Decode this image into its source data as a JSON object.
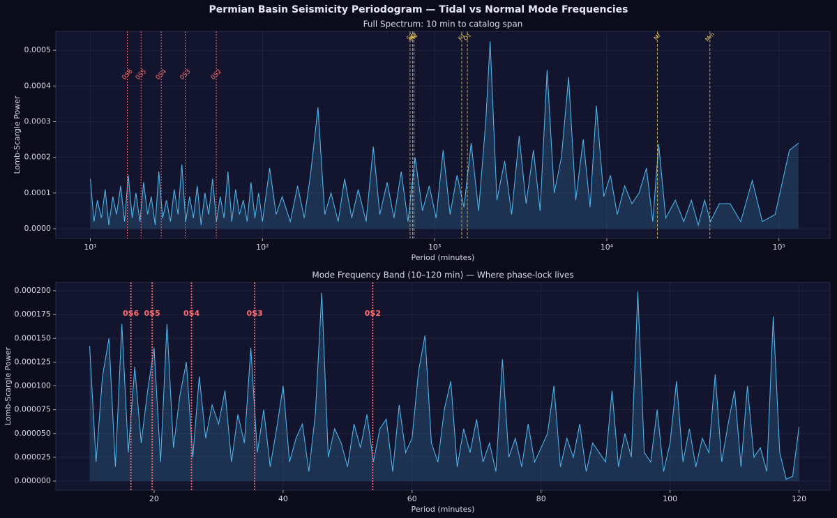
{
  "title": "Permian Basin Seismicity Periodogram — Tidal vs Normal Mode Frequencies",
  "chart_data": [
    {
      "type": "line",
      "title": "Full Spectrum: 10 min to catalog span",
      "xlabel": "Period (minutes)",
      "ylabel": "Lomb-Scargle Power",
      "x_scale": "log",
      "grid": true,
      "xlim": [
        6.3,
        198000
      ],
      "ylim": [
        -2.73e-05,
        0.000553
      ],
      "xticks": [
        {
          "value": 10,
          "label": "10¹"
        },
        {
          "value": 100,
          "label": "10²"
        },
        {
          "value": 1000,
          "label": "10³"
        },
        {
          "value": 10000,
          "label": "10⁴"
        },
        {
          "value": 100000,
          "label": "10⁵"
        }
      ],
      "yticks": [
        {
          "value": 0,
          "label": "0.0000"
        },
        {
          "value": 0.0001,
          "label": "0.0001"
        },
        {
          "value": 0.0002,
          "label": "0.0002"
        },
        {
          "value": 0.0003,
          "label": "0.0003"
        },
        {
          "value": 0.0004,
          "label": "0.0004"
        },
        {
          "value": 0.0005,
          "label": "0.0005"
        }
      ],
      "x": [
        10,
        10.5,
        11,
        11.6,
        12.2,
        12.8,
        13.5,
        14.2,
        15,
        15.8,
        16.6,
        17.5,
        18.4,
        19.4,
        20.4,
        21.5,
        22.6,
        23.8,
        25,
        26.3,
        27.7,
        29.2,
        30.7,
        32.3,
        34,
        35.8,
        37.7,
        39.7,
        41.8,
        44,
        46.3,
        48.7,
        51.3,
        54,
        56.8,
        59.8,
        63,
        66.3,
        69.8,
        73.5,
        77.4,
        81.5,
        85.8,
        90.3,
        95,
        100,
        110,
        120,
        130,
        145,
        160,
        175,
        190,
        210,
        230,
        250,
        275,
        300,
        330,
        360,
        400,
        440,
        480,
        530,
        580,
        640,
        700,
        770,
        850,
        930,
        1020,
        1120,
        1230,
        1350,
        1480,
        1630,
        1800,
        1980,
        2100,
        2300,
        2550,
        2800,
        3100,
        3400,
        3750,
        4100,
        4500,
        4950,
        5450,
        6000,
        6600,
        7300,
        8000,
        8700,
        9600,
        10500,
        11500,
        12700,
        14000,
        15400,
        17000,
        18500,
        20000,
        22000,
        25000,
        28000,
        31000,
        34000,
        37000,
        40000,
        45000,
        52000,
        60000,
        70000,
        80000,
        95000,
        115000,
        130000
      ],
      "series": [
        {
          "color": "#4fb3e8",
          "values": [
            0.00014,
            2e-05,
            8e-05,
            3e-05,
            0.00011,
            1e-05,
            9e-05,
            4e-05,
            0.00012,
            2e-05,
            0.00015,
            3e-05,
            0.0001,
            2e-05,
            0.00013,
            4e-05,
            9e-05,
            1e-05,
            0.00016,
            3e-05,
            8e-05,
            2e-05,
            0.00011,
            4e-05,
            0.00018,
            2e-05,
            9e-05,
            3e-05,
            0.00012,
            1e-05,
            0.0001,
            4e-05,
            0.00014,
            2e-05,
            9e-05,
            3e-05,
            0.00016,
            2e-05,
            0.00011,
            4e-05,
            8e-05,
            2e-05,
            0.00013,
            3e-05,
            0.0001,
            2e-05,
            0.00017,
            4e-05,
            9e-05,
            2e-05,
            0.00012,
            3e-05,
            0.00015,
            0.00034,
            4e-05,
            0.0001,
            2e-05,
            0.00014,
            3e-05,
            0.00011,
            2e-05,
            0.00023,
            4e-05,
            0.00013,
            3e-05,
            0.00016,
            2e-05,
            0.0002,
            5e-05,
            0.00012,
            3e-05,
            0.00022,
            4e-05,
            0.00015,
            6e-05,
            0.00024,
            5e-05,
            0.0003,
            0.000525,
            8e-05,
            0.00019,
            4e-05,
            0.00026,
            7e-05,
            0.00022,
            5e-05,
            0.000445,
            0.0001,
            0.0002,
            0.000425,
            8e-05,
            0.00025,
            6e-05,
            0.000345,
            9e-05,
            0.00015,
            4e-05,
            0.00012,
            7e-05,
            0.0001,
            0.00017,
            2e-05,
            0.000237,
            3e-05,
            8e-05,
            2e-05,
            8e-05,
            1e-05,
            8e-05,
            2e-05,
            7e-05,
            7e-05,
            2e-05,
            0.000135,
            2e-05,
            4e-05,
            0.00022,
            0.00024
          ]
        }
      ],
      "mode_color": "#ff6b6b",
      "mode_lines": [
        {
          "label": "0S6",
          "x": 16.4
        },
        {
          "label": "0S5",
          "x": 19.7
        },
        {
          "label": "0S4",
          "x": 25.8
        },
        {
          "label": "0S3",
          "x": 35.6
        },
        {
          "label": "0S2",
          "x": 53.9
        }
      ],
      "tidal_color": "#e8c25a",
      "tidal_lines": [
        {
          "label": "S2",
          "x": 720
        },
        {
          "label": "M2",
          "x": 745
        },
        {
          "label": "N2",
          "x": 759
        },
        {
          "label": "K1",
          "x": 1436
        },
        {
          "label": "O1",
          "x": 1549
        },
        {
          "label": "Mf",
          "x": 19670
        },
        {
          "label": "Mm",
          "x": 39700
        }
      ]
    },
    {
      "type": "line",
      "title": "Mode Frequency Band (10–120 min) — Where phase-lock lives",
      "xlabel": "Period (minutes)",
      "ylabel": "Lomb-Scargle Power",
      "x_scale": "linear",
      "grid": true,
      "xlim": [
        4.76,
        124.8
      ],
      "ylim": [
        -9.5e-06,
        0.0002088
      ],
      "xticks": [
        20,
        40,
        60,
        80,
        100,
        120
      ],
      "yticks": [
        {
          "value": 0,
          "label": "0.000000"
        },
        {
          "value": 2.5e-05,
          "label": "0.000025"
        },
        {
          "value": 5e-05,
          "label": "0.000050"
        },
        {
          "value": 7.5e-05,
          "label": "0.000075"
        },
        {
          "value": 0.0001,
          "label": "0.000100"
        },
        {
          "value": 0.000125,
          "label": "0.000125"
        },
        {
          "value": 0.00015,
          "label": "0.000150"
        },
        {
          "value": 0.000175,
          "label": "0.000175"
        },
        {
          "value": 0.0002,
          "label": "0.000200"
        }
      ],
      "x": [
        10,
        11,
        12,
        13,
        14,
        15,
        16,
        17,
        18,
        19,
        20,
        21,
        22,
        23,
        24,
        25,
        26,
        27,
        28,
        29,
        30,
        31,
        32,
        33,
        34,
        35,
        36,
        37,
        38,
        39,
        40,
        41,
        42,
        43,
        44,
        45,
        46,
        47,
        48,
        49,
        50,
        51,
        52,
        53,
        54,
        55,
        56,
        57,
        58,
        59,
        60,
        61,
        62,
        63,
        64,
        65,
        66,
        67,
        68,
        69,
        70,
        71,
        72,
        73,
        74,
        75,
        76,
        77,
        78,
        79,
        80,
        81,
        82,
        83,
        84,
        85,
        86,
        87,
        88,
        89,
        90,
        91,
        92,
        93,
        94,
        95,
        96,
        97,
        98,
        99,
        100,
        101,
        102,
        103,
        104,
        105,
        106,
        107,
        108,
        109,
        110,
        111,
        112,
        113,
        114,
        115,
        116,
        117,
        118,
        119,
        120
      ],
      "series": [
        {
          "color": "#4fb3e8",
          "values": [
            0.000142,
            2e-05,
            0.00011,
            0.00015,
            1.5e-05,
            0.000165,
            3e-05,
            0.00012,
            4e-05,
            9.5e-05,
            0.00014,
            2e-05,
            0.000165,
            3.5e-05,
            9e-05,
            0.000125,
            2.5e-05,
            0.00011,
            4.5e-05,
            8e-05,
            6e-05,
            9.5e-05,
            2e-05,
            7e-05,
            4e-05,
            0.00014,
            3e-05,
            7.5e-05,
            1.5e-05,
            5.5e-05,
            0.0001,
            2e-05,
            4.5e-05,
            6e-05,
            1e-05,
            7e-05,
            0.000198,
            2.5e-05,
            5.5e-05,
            4e-05,
            1.5e-05,
            6e-05,
            3.5e-05,
            7e-05,
            2e-05,
            5.5e-05,
            6.5e-05,
            1e-05,
            8e-05,
            3e-05,
            4.5e-05,
            0.000115,
            0.000153,
            4e-05,
            2e-05,
            7.5e-05,
            0.000105,
            1.5e-05,
            5.5e-05,
            3e-05,
            6.5e-05,
            2e-05,
            4e-05,
            1e-05,
            0.000128,
            2.5e-05,
            4.5e-05,
            1.5e-05,
            6e-05,
            2e-05,
            3.5e-05,
            5e-05,
            0.0001,
            1.5e-05,
            4.5e-05,
            2.5e-05,
            6e-05,
            1e-05,
            4e-05,
            3e-05,
            2e-05,
            9.5e-05,
            1.5e-05,
            5e-05,
            2.5e-05,
            0.000199,
            3e-05,
            2e-05,
            7.5e-05,
            1e-05,
            4e-05,
            0.000105,
            2e-05,
            5.5e-05,
            1.5e-05,
            4.5e-05,
            3e-05,
            0.000112,
            2e-05,
            6e-05,
            9.5e-05,
            1.5e-05,
            0.0001,
            2.5e-05,
            3.5e-05,
            1e-05,
            0.000173,
            3e-05,
            2e-06,
            5e-06,
            5.7e-05
          ]
        }
      ],
      "mode_color": "#ff6b6b",
      "mode_lines": [
        {
          "label": "0S6",
          "x": 16.4
        },
        {
          "label": "0S5",
          "x": 19.7
        },
        {
          "label": "0S4",
          "x": 25.8
        },
        {
          "label": "0S3",
          "x": 35.6
        },
        {
          "label": "0S2",
          "x": 53.9
        }
      ]
    }
  ]
}
